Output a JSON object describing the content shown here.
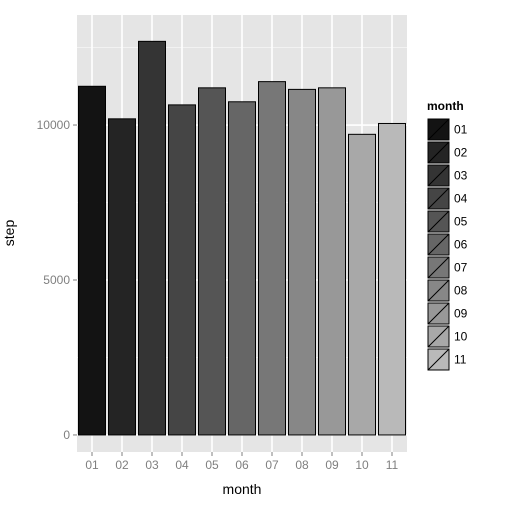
{
  "chart_data": {
    "type": "bar",
    "title": "",
    "xlabel": "month",
    "ylabel": "step",
    "categories": [
      "01",
      "02",
      "03",
      "04",
      "05",
      "06",
      "07",
      "08",
      "09",
      "10",
      "11"
    ],
    "values": [
      11250,
      10200,
      12700,
      10650,
      11200,
      10750,
      11400,
      11150,
      11200,
      9700,
      10050
    ],
    "ylim": [
      -550,
      13550
    ],
    "yticks": [
      0,
      5000,
      10000
    ],
    "ytick_labels": [
      "0",
      "5000",
      "10000"
    ],
    "grid": true,
    "legend": {
      "title": "month",
      "position": "right",
      "entries": [
        "01",
        "02",
        "03",
        "04",
        "05",
        "06",
        "07",
        "08",
        "09",
        "10",
        "11"
      ]
    },
    "colors": {
      "panel_background": "#e5e5e5",
      "grid_major": "#ffffff",
      "grid_minor": "#f2f2f2",
      "bar_outline": "#000000",
      "fill_start": "#131313",
      "fill_end": "#b9b9b9"
    }
  }
}
